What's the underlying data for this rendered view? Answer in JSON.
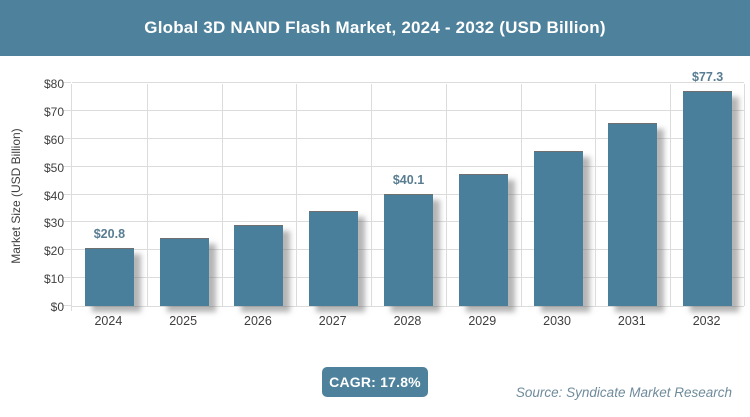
{
  "header": {
    "title": "Global 3D NAND Flash Market, 2024 - 2032 (USD Billion)"
  },
  "chart_data": {
    "type": "bar",
    "title": "Global 3D NAND Flash Market, 2024 - 2032 (USD Billion)",
    "categories": [
      "2024",
      "2025",
      "2026",
      "2027",
      "2028",
      "2029",
      "2030",
      "2031",
      "2032"
    ],
    "values": [
      20.8,
      24.5,
      28.9,
      34.0,
      40.1,
      47.2,
      55.6,
      65.5,
      77.3
    ],
    "data_labels": [
      {
        "index": 0,
        "text": "$20.8"
      },
      {
        "index": 4,
        "text": "$40.1"
      },
      {
        "index": 8,
        "text": "$77.3"
      }
    ],
    "xlabel": "",
    "ylabel": "Market Size (USD Billion)",
    "ylim": [
      0,
      80
    ],
    "ytick_step": 10,
    "ytick_labels": [
      "$0",
      "$10",
      "$20",
      "$30",
      "$40",
      "$50",
      "$60",
      "$70",
      "$80"
    ],
    "grid": true,
    "legend": false
  },
  "footer": {
    "cagr_label": "CAGR: 17.8%",
    "source": "Source: Syndicate Market Research"
  },
  "colors": {
    "accent_teal": "#4d819c",
    "bar_fill": "#4a7f9b",
    "gridline": "#dcdcdc",
    "axis_text": "#3f3f3f",
    "data_label_text": "#587d92",
    "source_text": "#6f8b9b",
    "badge_text": "#ffffff",
    "background": "#ffffff"
  }
}
